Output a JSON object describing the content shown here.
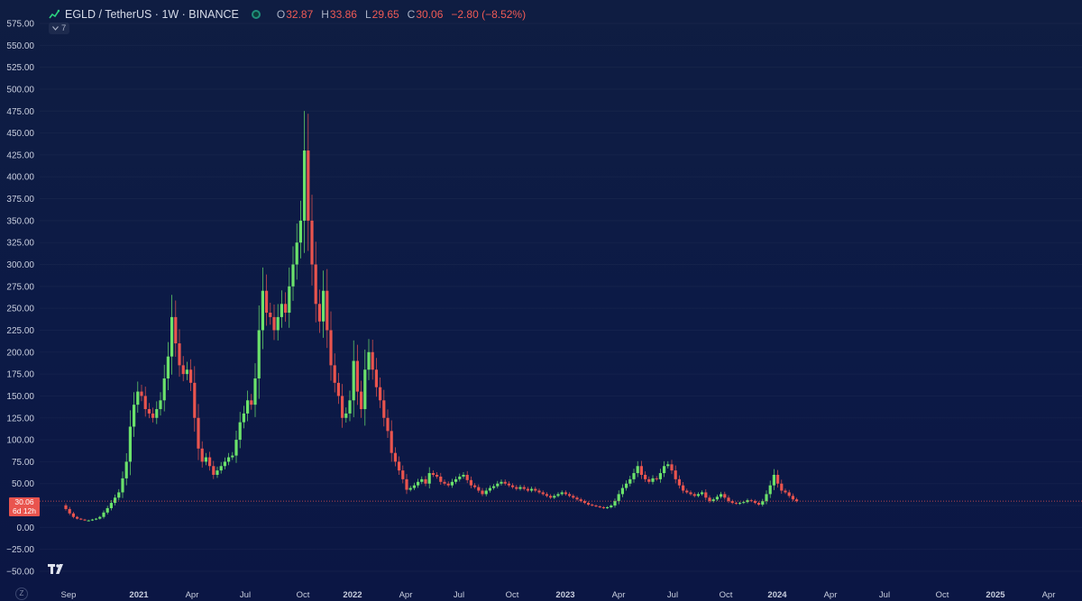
{
  "header": {
    "symbol_title": "EGLD / TetherUS · 1W · BINANCE",
    "ohlc": {
      "open_label": "O",
      "open": "32.87",
      "high_label": "H",
      "high": "33.86",
      "low_label": "L",
      "low": "29.65",
      "close_label": "C",
      "close": "30.06",
      "change": "−2.80 (−8.52%)"
    },
    "indicator_count": "7"
  },
  "price_tag": {
    "price": "30.06",
    "countdown": "6d 12h"
  },
  "footer": {
    "timezone_button": "Z"
  },
  "colors": {
    "up": "#6be26b",
    "down": "#e9544e",
    "background_top": "#0f1d42",
    "background_bottom": "#0b1644",
    "axis_text": "#c9cfdf"
  },
  "icons": {
    "symbol": "chart-line-icon",
    "status": "market-status-icon",
    "logo": "tradingview-logo-icon"
  },
  "chart_data": {
    "type": "candlestick",
    "symbol": "EGLD / TetherUS",
    "interval": "1W",
    "exchange": "BINANCE",
    "ylim": [
      -50,
      575
    ],
    "y_ticks": [
      "575.00",
      "550.00",
      "525.00",
      "500.00",
      "475.00",
      "450.00",
      "425.00",
      "400.00",
      "375.00",
      "350.00",
      "325.00",
      "300.00",
      "275.00",
      "250.00",
      "225.00",
      "200.00",
      "175.00",
      "150.00",
      "125.00",
      "100.00",
      "75.00",
      "50.00",
      "25.00",
      "0.00",
      "−25.00",
      "−50.00"
    ],
    "x_ticks": [
      "Sep",
      "2021",
      "Apr",
      "Jul",
      "Oct",
      "2022",
      "Apr",
      "Jul",
      "Oct",
      "2023",
      "Apr",
      "Jul",
      "Oct",
      "2024",
      "Apr",
      "Jul",
      "Oct",
      "2025",
      "Apr"
    ],
    "current_price": 30.06,
    "weekly_closes": [
      21,
      16,
      12,
      10,
      9,
      8,
      8,
      9,
      10,
      12,
      17,
      22,
      28,
      34,
      40,
      56,
      75,
      115,
      140,
      155,
      150,
      135,
      130,
      125,
      135,
      145,
      170,
      195,
      240,
      210,
      185,
      175,
      180,
      165,
      125,
      90,
      75,
      80,
      70,
      60,
      65,
      70,
      75,
      80,
      82,
      100,
      120,
      130,
      145,
      140,
      170,
      225,
      270,
      245,
      240,
      225,
      240,
      255,
      245,
      275,
      300,
      325,
      350,
      430,
      350,
      300,
      255,
      235,
      270,
      225,
      185,
      165,
      150,
      125,
      130,
      145,
      190,
      155,
      135,
      180,
      200,
      180,
      160,
      145,
      125,
      110,
      85,
      75,
      65,
      55,
      43,
      45,
      48,
      52,
      55,
      50,
      62,
      60,
      58,
      52,
      50,
      48,
      52,
      55,
      58,
      60,
      54,
      48,
      46,
      42,
      38,
      42,
      45,
      47,
      50,
      52,
      50,
      48,
      46,
      44,
      46,
      44,
      42,
      44,
      42,
      40,
      38,
      36,
      34,
      36,
      38,
      40,
      38,
      36,
      34,
      32,
      30,
      28,
      26,
      25,
      24,
      23,
      22,
      23,
      25,
      30,
      38,
      45,
      50,
      55,
      62,
      70,
      60,
      55,
      52,
      56,
      55,
      62,
      70,
      72,
      65,
      55,
      48,
      42,
      40,
      38,
      36,
      38,
      40,
      34,
      30,
      32,
      35,
      38,
      34,
      30,
      28,
      27,
      28,
      29,
      31,
      30,
      28,
      26,
      30,
      38,
      48,
      60,
      50,
      42,
      40,
      36,
      32,
      30
    ]
  }
}
